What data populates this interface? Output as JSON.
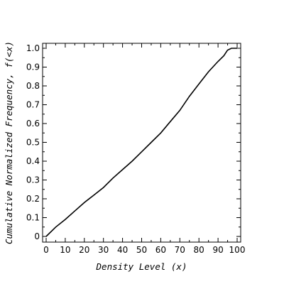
{
  "chart_data": {
    "type": "line",
    "title": "",
    "xlabel": "Density Level (x)",
    "ylabel": "Cumulative Normalized Frequency, f(<x)",
    "xlim": [
      0,
      100
    ],
    "ylim": [
      0,
      1.0
    ],
    "x_ticks": [
      "0",
      "10",
      "20",
      "30",
      "40",
      "50",
      "60",
      "70",
      "80",
      "90",
      "100"
    ],
    "y_ticks": [
      "0",
      "0.1",
      "0.2",
      "0.3",
      "0.4",
      "0.5",
      "0.6",
      "0.7",
      "0.8",
      "0.9",
      "1.0"
    ],
    "grid": false,
    "legend": "none",
    "line_color": "#000000",
    "series": [
      {
        "x": [
          0,
          5,
          10,
          15,
          20,
          25,
          30,
          35,
          40,
          45,
          50,
          55,
          60,
          65,
          70,
          75,
          80,
          85,
          90,
          93,
          95,
          97,
          100
        ],
        "y": [
          0.0,
          0.05,
          0.09,
          0.135,
          0.18,
          0.22,
          0.26,
          0.31,
          0.355,
          0.4,
          0.45,
          0.5,
          0.55,
          0.61,
          0.67,
          0.745,
          0.81,
          0.875,
          0.93,
          0.96,
          0.99,
          1.0,
          1.0
        ]
      }
    ]
  }
}
